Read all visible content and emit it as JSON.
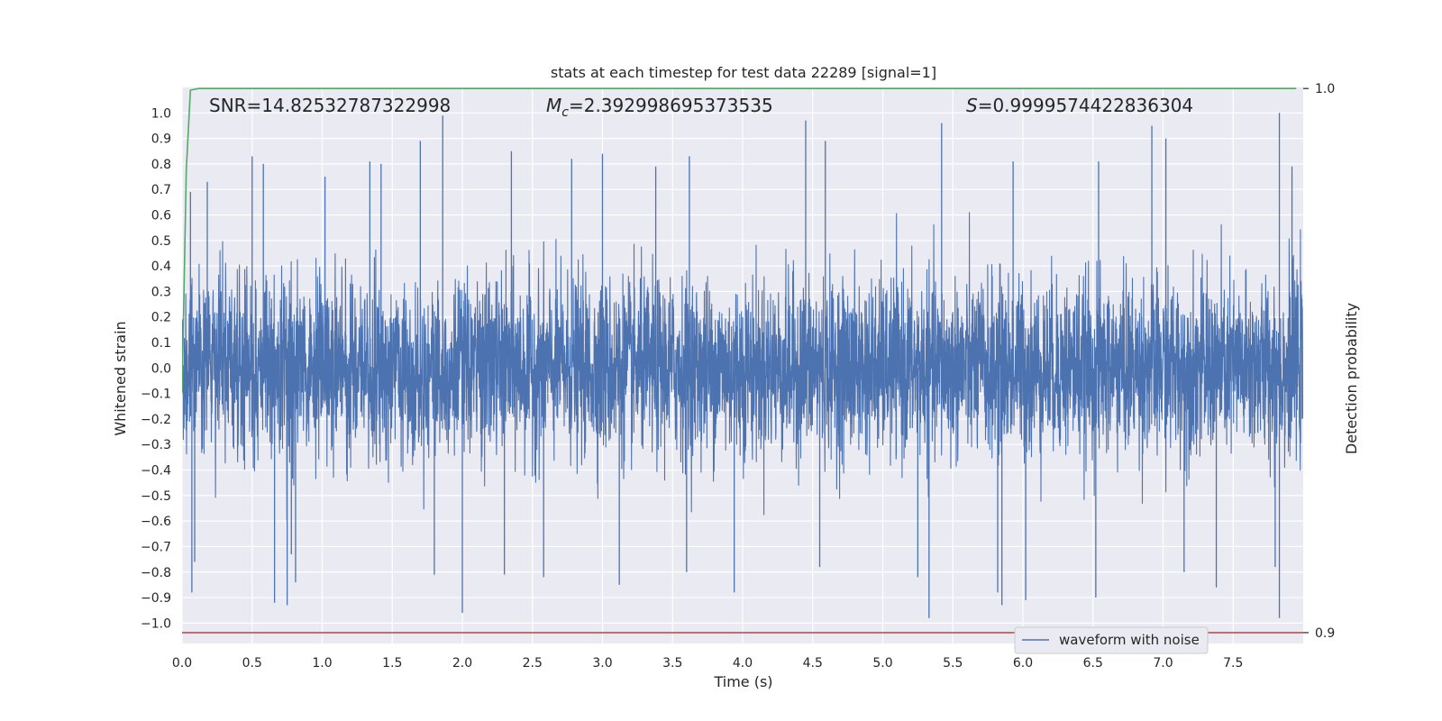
{
  "chart_data": {
    "type": "line",
    "title": "stats at each timestep for test data 22289 [signal=1]",
    "xlabel": "Time (s)",
    "ylabel": "Whitened strain",
    "y2label": "Detection probability",
    "xlim": [
      0.0,
      8.0
    ],
    "ylim": [
      -1.08,
      1.1
    ],
    "y2lim": [
      0.898,
      1.0002
    ],
    "x_ticks": [
      "0.0",
      "0.5",
      "1.0",
      "1.5",
      "2.0",
      "2.5",
      "3.0",
      "3.5",
      "4.0",
      "4.5",
      "5.0",
      "5.5",
      "6.0",
      "6.5",
      "7.0",
      "7.5"
    ],
    "y_ticks": [
      "1.0",
      "0.9",
      "0.8",
      "0.7",
      "0.6",
      "0.5",
      "0.4",
      "0.3",
      "0.2",
      "0.1",
      "0.0",
      "−0.1",
      "−0.2",
      "−0.3",
      "−0.4",
      "−0.5",
      "−0.6",
      "−0.7",
      "−0.8",
      "−0.9",
      "−1.0"
    ],
    "y2_ticks": [
      "1.0",
      "0.9"
    ],
    "grid": true,
    "legend_position": "bottom-right",
    "annotations": {
      "snr_prefix": "SNR=14.82532787322998",
      "mc_symbol": "M",
      "mc_subscript": "c",
      "mc_value": "=2.392998695373535",
      "s_symbol": "S",
      "s_value": "=0.9999574422836304"
    },
    "series": [
      {
        "name": "waveform with noise",
        "axis": "left",
        "color": "#4c72b0",
        "description": "dense whitened strain noise, bulk amplitude about ±0.35 with spikes reaching near ±1.0",
        "noise_std": 0.17,
        "x_range": [
          0.0,
          8.0
        ]
      },
      {
        "name": "",
        "axis": "right",
        "color": "#55a868",
        "points": [
          [
            0.0,
            0.944
          ],
          [
            0.03,
            0.985
          ],
          [
            0.06,
            0.9997
          ],
          [
            0.12,
            1.0
          ],
          [
            7.95,
            1.0
          ]
        ]
      },
      {
        "name": "",
        "axis": "right",
        "color": "#c44e52",
        "points": [
          [
            0.0,
            0.9
          ],
          [
            8.0,
            0.9
          ]
        ]
      }
    ],
    "spikes": [
      {
        "x": 0.06,
        "y": 0.69
      },
      {
        "x": 0.07,
        "y": -0.88
      },
      {
        "x": 0.09,
        "y": -0.76
      },
      {
        "x": 0.18,
        "y": 0.73
      },
      {
        "x": 0.5,
        "y": 0.83
      },
      {
        "x": 0.58,
        "y": 0.8
      },
      {
        "x": 0.66,
        "y": -0.92
      },
      {
        "x": 0.75,
        "y": -0.93
      },
      {
        "x": 0.78,
        "y": -0.73
      },
      {
        "x": 0.81,
        "y": -0.84
      },
      {
        "x": 1.02,
        "y": 0.75
      },
      {
        "x": 1.34,
        "y": 0.81
      },
      {
        "x": 1.42,
        "y": 0.8
      },
      {
        "x": 1.7,
        "y": 0.89
      },
      {
        "x": 1.86,
        "y": 0.99
      },
      {
        "x": 1.8,
        "y": -0.81
      },
      {
        "x": 2.0,
        "y": -0.96
      },
      {
        "x": 2.3,
        "y": -0.81
      },
      {
        "x": 2.35,
        "y": 0.85
      },
      {
        "x": 2.58,
        "y": -0.82
      },
      {
        "x": 2.78,
        "y": 0.82
      },
      {
        "x": 3.0,
        "y": 0.84
      },
      {
        "x": 3.12,
        "y": -0.85
      },
      {
        "x": 3.38,
        "y": 0.79
      },
      {
        "x": 3.6,
        "y": -0.8
      },
      {
        "x": 3.62,
        "y": 0.83
      },
      {
        "x": 3.94,
        "y": -0.88
      },
      {
        "x": 4.45,
        "y": 0.97
      },
      {
        "x": 4.59,
        "y": 0.89
      },
      {
        "x": 4.55,
        "y": -0.78
      },
      {
        "x": 5.33,
        "y": -0.98
      },
      {
        "x": 5.42,
        "y": 0.96
      },
      {
        "x": 5.25,
        "y": -0.82
      },
      {
        "x": 5.82,
        "y": -0.88
      },
      {
        "x": 5.85,
        "y": -0.93
      },
      {
        "x": 5.93,
        "y": 0.81
      },
      {
        "x": 6.02,
        "y": -0.91
      },
      {
        "x": 6.52,
        "y": -0.9
      },
      {
        "x": 6.54,
        "y": 0.81
      },
      {
        "x": 6.92,
        "y": 0.95
      },
      {
        "x": 7.02,
        "y": 0.9
      },
      {
        "x": 7.15,
        "y": -0.8
      },
      {
        "x": 7.38,
        "y": -0.86
      },
      {
        "x": 7.8,
        "y": -0.78
      },
      {
        "x": 7.83,
        "y": 1.0
      },
      {
        "x": 7.83,
        "y": -0.98
      },
      {
        "x": 7.92,
        "y": 0.79
      }
    ]
  }
}
